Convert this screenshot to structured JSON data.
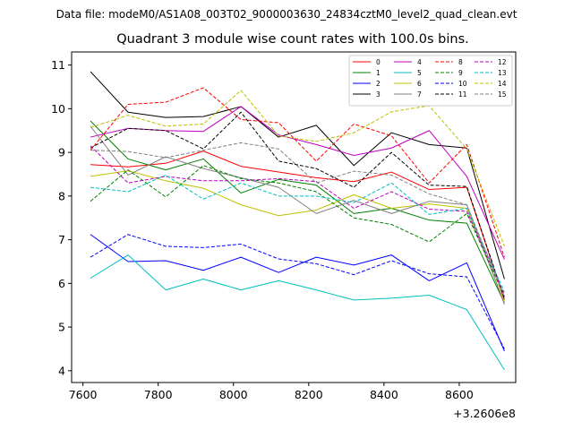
{
  "header": {
    "suptitle": "Data file: modeM0/AS1A08_003T02_9000003630_24834cztM0_level2_quad_clean.evt"
  },
  "chart_data": {
    "type": "line",
    "title": "Quadrant 3 module wise count rates with 100.0s bins.",
    "xlabel": "",
    "ylabel": "",
    "x_offset_label": "+3.2606e8",
    "xlim": [
      7570,
      8750
    ],
    "ylim": [
      3.73,
      11.3
    ],
    "x_ticks": [
      7600,
      7800,
      8000,
      8200,
      8400,
      8600
    ],
    "y_ticks": [
      4,
      5,
      6,
      7,
      8,
      9,
      10,
      11
    ],
    "grid": false,
    "legend_location": "top-right",
    "x": [
      7620,
      7720,
      7820,
      7920,
      8020,
      8120,
      8220,
      8320,
      8420,
      8520,
      8620,
      8720
    ],
    "series": [
      {
        "name": "0",
        "color": "#ff0000",
        "dash": "solid",
        "values": [
          8.72,
          8.67,
          8.75,
          9.03,
          8.68,
          8.55,
          8.42,
          8.33,
          8.55,
          8.15,
          8.2,
          5.62
        ]
      },
      {
        "name": "1",
        "color": "#008000",
        "dash": "solid",
        "values": [
          9.72,
          8.85,
          8.6,
          8.85,
          8.07,
          8.38,
          8.25,
          7.6,
          7.72,
          7.45,
          7.38,
          5.55
        ]
      },
      {
        "name": "2",
        "color": "#0000ff",
        "dash": "solid",
        "values": [
          7.12,
          6.5,
          6.52,
          6.3,
          6.6,
          6.25,
          6.6,
          6.42,
          6.65,
          6.06,
          6.47,
          4.45
        ]
      },
      {
        "name": "3",
        "color": "#000000",
        "dash": "solid",
        "values": [
          10.85,
          9.92,
          9.8,
          9.82,
          10.05,
          9.35,
          9.62,
          8.7,
          9.45,
          9.18,
          9.1,
          6.1
        ]
      },
      {
        "name": "4",
        "color": "#bf00bf",
        "dash": "solid",
        "values": [
          9.35,
          9.55,
          9.5,
          9.48,
          10.05,
          9.4,
          9.18,
          8.93,
          9.1,
          9.5,
          8.45,
          6.55
        ]
      },
      {
        "name": "5",
        "color": "#00bfbf",
        "dash": "solid",
        "values": [
          6.12,
          6.65,
          5.85,
          6.1,
          5.85,
          6.06,
          5.85,
          5.62,
          5.66,
          5.73,
          5.4,
          4.02
        ]
      },
      {
        "name": "6",
        "color": "#bfbf00",
        "dash": "solid",
        "values": [
          8.45,
          8.58,
          8.35,
          8.18,
          7.8,
          7.55,
          7.68,
          8.03,
          7.72,
          7.82,
          7.72,
          5.57
        ]
      },
      {
        "name": "7",
        "color": "#808080",
        "dash": "solid",
        "values": [
          9.6,
          8.48,
          8.9,
          8.63,
          8.42,
          8.2,
          7.6,
          7.9,
          7.6,
          7.88,
          7.8,
          5.52
        ]
      },
      {
        "name": "8",
        "color": "#ff0000",
        "dash": "dashed",
        "values": [
          9.05,
          10.1,
          10.15,
          10.48,
          9.75,
          9.68,
          8.8,
          9.65,
          9.38,
          8.3,
          9.18,
          6.6
        ]
      },
      {
        "name": "9",
        "color": "#008000",
        "dash": "dashed",
        "values": [
          7.88,
          8.6,
          7.98,
          8.7,
          8.4,
          8.3,
          8.1,
          7.5,
          7.35,
          6.95,
          7.6,
          5.7
        ]
      },
      {
        "name": "10",
        "color": "#0000ff",
        "dash": "dashed",
        "values": [
          6.6,
          7.12,
          6.85,
          6.82,
          6.9,
          6.56,
          6.45,
          6.2,
          6.52,
          6.22,
          6.15,
          4.5
        ]
      },
      {
        "name": "11",
        "color": "#000000",
        "dash": "dashed",
        "values": [
          9.1,
          9.55,
          9.5,
          9.08,
          9.92,
          8.8,
          8.63,
          8.2,
          9.0,
          8.25,
          8.22,
          5.65
        ]
      },
      {
        "name": "12",
        "color": "#bf00bf",
        "dash": "dashed",
        "values": [
          9.15,
          8.3,
          8.45,
          8.35,
          8.35,
          8.4,
          8.33,
          7.72,
          8.1,
          7.7,
          7.65,
          5.75
        ]
      },
      {
        "name": "13",
        "color": "#00bfbf",
        "dash": "dashed",
        "values": [
          8.2,
          8.1,
          8.48,
          7.93,
          8.3,
          8.0,
          8.0,
          7.85,
          8.3,
          7.58,
          7.72,
          5.8
        ]
      },
      {
        "name": "14",
        "color": "#bfbf00",
        "dash": "dashed",
        "values": [
          9.57,
          9.85,
          9.6,
          9.65,
          10.42,
          9.38,
          9.25,
          9.45,
          9.93,
          10.07,
          9.08,
          6.85
        ]
      },
      {
        "name": "15",
        "color": "#808080",
        "dash": "dashed",
        "values": [
          9.05,
          9.02,
          8.88,
          9.05,
          9.22,
          9.08,
          8.3,
          8.57,
          8.48,
          8.05,
          7.8,
          5.7
        ]
      }
    ]
  }
}
